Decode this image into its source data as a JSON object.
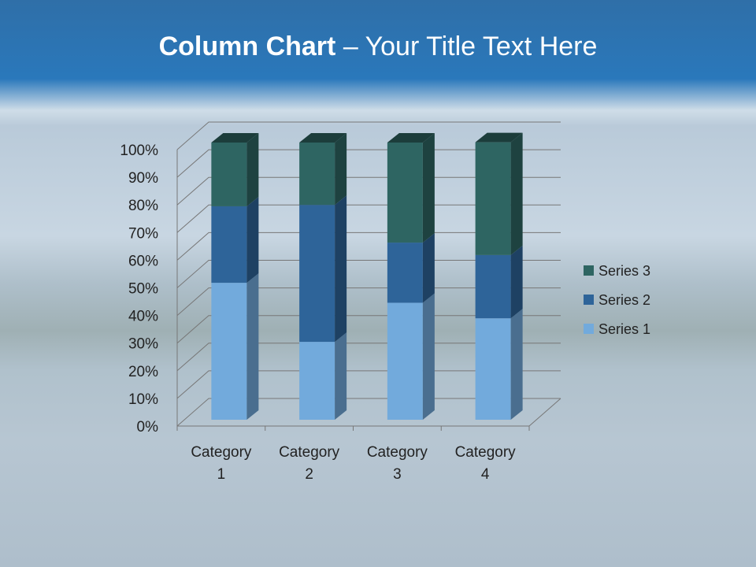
{
  "title": {
    "bold": "Column Chart",
    "rest": " – Your Title Text Here"
  },
  "chart_data": {
    "type": "bar",
    "stacked": "percent",
    "categories": [
      "Category 1",
      "Category 2",
      "Category 3",
      "Category 4"
    ],
    "category_lines": [
      [
        "Category",
        "1"
      ],
      [
        "Category",
        "2"
      ],
      [
        "Category",
        "3"
      ],
      [
        "Category",
        "4"
      ]
    ],
    "series": [
      {
        "name": "Series 1",
        "values": [
          49.4,
          28.1,
          42.2,
          36.6
        ],
        "color": "#72aadc"
      },
      {
        "name": "Series 2",
        "values": [
          27.6,
          49.4,
          21.7,
          22.8
        ],
        "color": "#2e6499"
      },
      {
        "name": "Series 3",
        "values": [
          23.0,
          22.5,
          36.1,
          40.7
        ],
        "color": "#2e6562"
      }
    ],
    "ylim": [
      0,
      100
    ],
    "yticks": [
      "0%",
      "10%",
      "20%",
      "30%",
      "40%",
      "50%",
      "60%",
      "70%",
      "80%",
      "90%",
      "100%"
    ],
    "grid": true,
    "legend": "right",
    "view": "3d"
  }
}
